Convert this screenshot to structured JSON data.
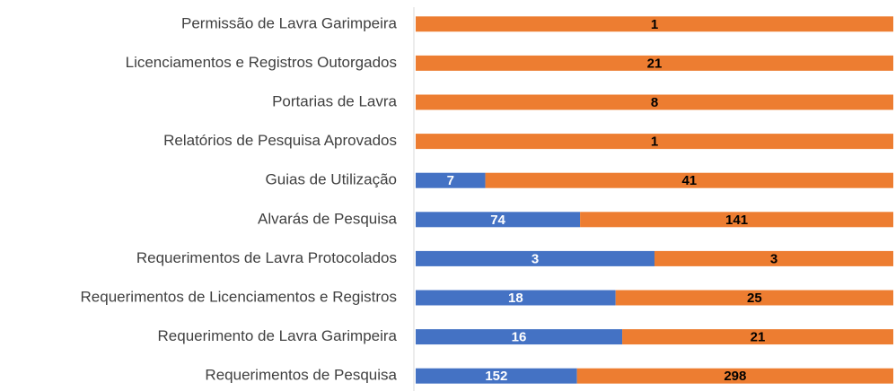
{
  "chart_data": {
    "type": "stacked-bar-100-horizontal",
    "categories": [
      "Permissão de Lavra Garimpeira",
      "Licenciamentos e Registros Outorgados",
      "Portarias de Lavra",
      "Relatórios de Pesquisa Aprovados",
      "Guias de Utilização",
      "Alvarás de Pesquisa",
      "Requerimentos de Lavra Protocolados",
      "Requerimentos de Licenciamentos e Registros",
      "Requerimento de Lavra Garimpeira",
      "Requerimentos de Pesquisa"
    ],
    "series": [
      {
        "color": "#4472c4",
        "label_color": "#ffffff",
        "values": [
          0,
          0,
          0,
          0,
          7,
          74,
          3,
          18,
          16,
          152
        ],
        "value_labels": [
          "-",
          null,
          "-",
          null,
          "7",
          "74",
          "3",
          "18",
          "16",
          "152"
        ]
      },
      {
        "color": "#ed7d31",
        "label_color": "#000000",
        "values": [
          1,
          21,
          8,
          1,
          41,
          141,
          3,
          25,
          21,
          298
        ]
      }
    ]
  }
}
